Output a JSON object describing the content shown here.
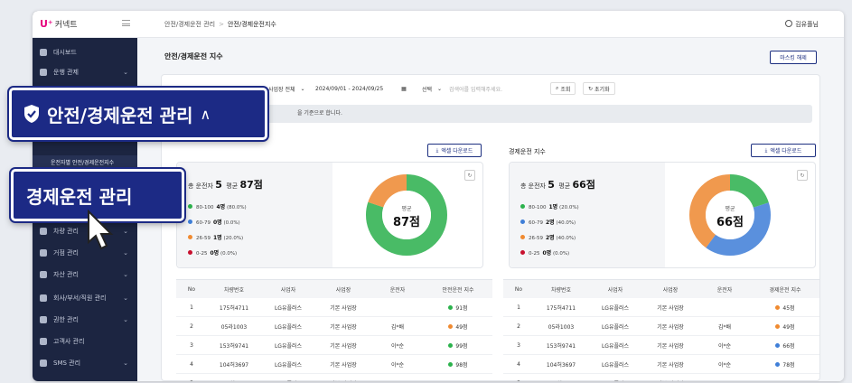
{
  "app": {
    "brand": "U⁺",
    "name": "커넥트"
  },
  "breadcrumb": {
    "parent": "안전/경제운전 관리",
    "sep": ">",
    "current": "안전/경제운전지수"
  },
  "user": {
    "name": "김유플님"
  },
  "sidebar": {
    "items": [
      {
        "label": "대시보드",
        "chev": ""
      },
      {
        "label": "운행 관제",
        "chev": "⌄"
      },
      {
        "label": "차량 관리",
        "chev": "⌄"
      },
      {
        "label": "거점 관리",
        "chev": "⌄"
      },
      {
        "label": "자산 관리",
        "chev": "⌄"
      },
      {
        "label": "회사/부서/직원 관리",
        "chev": "⌄"
      },
      {
        "label": "권한 관리",
        "chev": "⌄"
      },
      {
        "label": "고객사 관리",
        "chev": ""
      },
      {
        "label": "SMS 관리",
        "chev": "⌄"
      }
    ],
    "sub_active": "운전자별 안전/경제운전지수"
  },
  "page": {
    "title": "안전/경제운전 지수",
    "master_button": "마스킹 해제"
  },
  "filters": {
    "site": "사업장 전체",
    "date_range": "2024/09/01 - 2024/09/25",
    "type": "선택",
    "search_placeholder": "검색어를 입력해주세요.",
    "search_button": "조회",
    "reset_button": "초기화"
  },
  "notice": "을 기준으로 합니다.",
  "download_label": "엑셀 다운로드",
  "safety": {
    "total_label": "총 운전자",
    "total": "5",
    "avg_label": "평균",
    "avg": "87점",
    "center_label": "평균",
    "center_value": "87점",
    "legend": [
      {
        "range": "80-100",
        "count": "4명",
        "pct": "(80.0%)",
        "color": "#2bb24c"
      },
      {
        "range": "60-79",
        "count": "0명",
        "pct": "(0.0%)",
        "color": "#3f7fd8"
      },
      {
        "range": "26-59",
        "count": "1명",
        "pct": "(20.0%)",
        "color": "#f08a30"
      },
      {
        "range": "0-25",
        "count": "0명",
        "pct": "(0.0%)",
        "color": "#c8102e"
      }
    ],
    "shares": [
      0.8,
      0.0,
      0.2,
      0.0
    ],
    "columns": [
      "No",
      "차량번호",
      "사업자",
      "사업장",
      "운전자",
      "안전운전 지수"
    ],
    "rows": [
      {
        "no": "1",
        "car": "175허4711",
        "biz": "LG유플러스",
        "site": "기본 사업장",
        "driver": "",
        "score": "91점",
        "color": "#2bb24c"
      },
      {
        "no": "2",
        "car": "05라1003",
        "biz": "LG유플러스",
        "site": "기본 사업장",
        "driver": "김*배",
        "score": "49점",
        "color": "#f08a30"
      },
      {
        "no": "3",
        "car": "153허9741",
        "biz": "LG유플러스",
        "site": "기본 사업장",
        "driver": "이*순",
        "score": "99점",
        "color": "#2bb24c"
      },
      {
        "no": "4",
        "car": "104허3697",
        "biz": "LG유플러스",
        "site": "기본 사업장",
        "driver": "이*순",
        "score": "98점",
        "color": "#2bb24c"
      },
      {
        "no": "5",
        "car": "172허3834",
        "biz": "LG유플러스",
        "site": "기본 사업장",
        "driver": "",
        "score": "100점",
        "color": "#2bb24c"
      }
    ]
  },
  "economy": {
    "title": "경제운전 지수",
    "total_label": "총 운전자",
    "total": "5",
    "avg_label": "평균",
    "avg": "66점",
    "center_label": "평균",
    "center_value": "66점",
    "legend": [
      {
        "range": "80-100",
        "count": "1명",
        "pct": "(20.0%)",
        "color": "#2bb24c"
      },
      {
        "range": "60-79",
        "count": "2명",
        "pct": "(40.0%)",
        "color": "#3f7fd8"
      },
      {
        "range": "26-59",
        "count": "2명",
        "pct": "(40.0%)",
        "color": "#f08a30"
      },
      {
        "range": "0-25",
        "count": "0명",
        "pct": "(0.0%)",
        "color": "#c8102e"
      }
    ],
    "shares": [
      0.2,
      0.4,
      0.4,
      0.0
    ],
    "columns": [
      "No",
      "차량번호",
      "사업자",
      "사업장",
      "운전자",
      "경제운전 지수"
    ],
    "rows": [
      {
        "no": "1",
        "car": "175허4711",
        "biz": "LG유플러스",
        "site": "기본 사업장",
        "driver": "",
        "score": "45점",
        "color": "#f08a30"
      },
      {
        "no": "2",
        "car": "05라1003",
        "biz": "LG유플러스",
        "site": "기본 사업장",
        "driver": "김*배",
        "score": "49점",
        "color": "#f08a30"
      },
      {
        "no": "3",
        "car": "153허9741",
        "biz": "LG유플러스",
        "site": "기본 사업장",
        "driver": "이*순",
        "score": "66점",
        "color": "#3f7fd8"
      },
      {
        "no": "4",
        "car": "104허3697",
        "biz": "LG유플러스",
        "site": "기본 사업장",
        "driver": "이*순",
        "score": "78점",
        "color": "#3f7fd8"
      },
      {
        "no": "5",
        "car": "172허3834",
        "biz": "LG유플러스",
        "site": "기본 사업장",
        "driver": "",
        "score": "91점",
        "color": "#2bb24c"
      }
    ]
  },
  "callouts": {
    "main": "안전/경제운전 관리",
    "main_chev": "∧",
    "sub": "경제운전 관리"
  }
}
